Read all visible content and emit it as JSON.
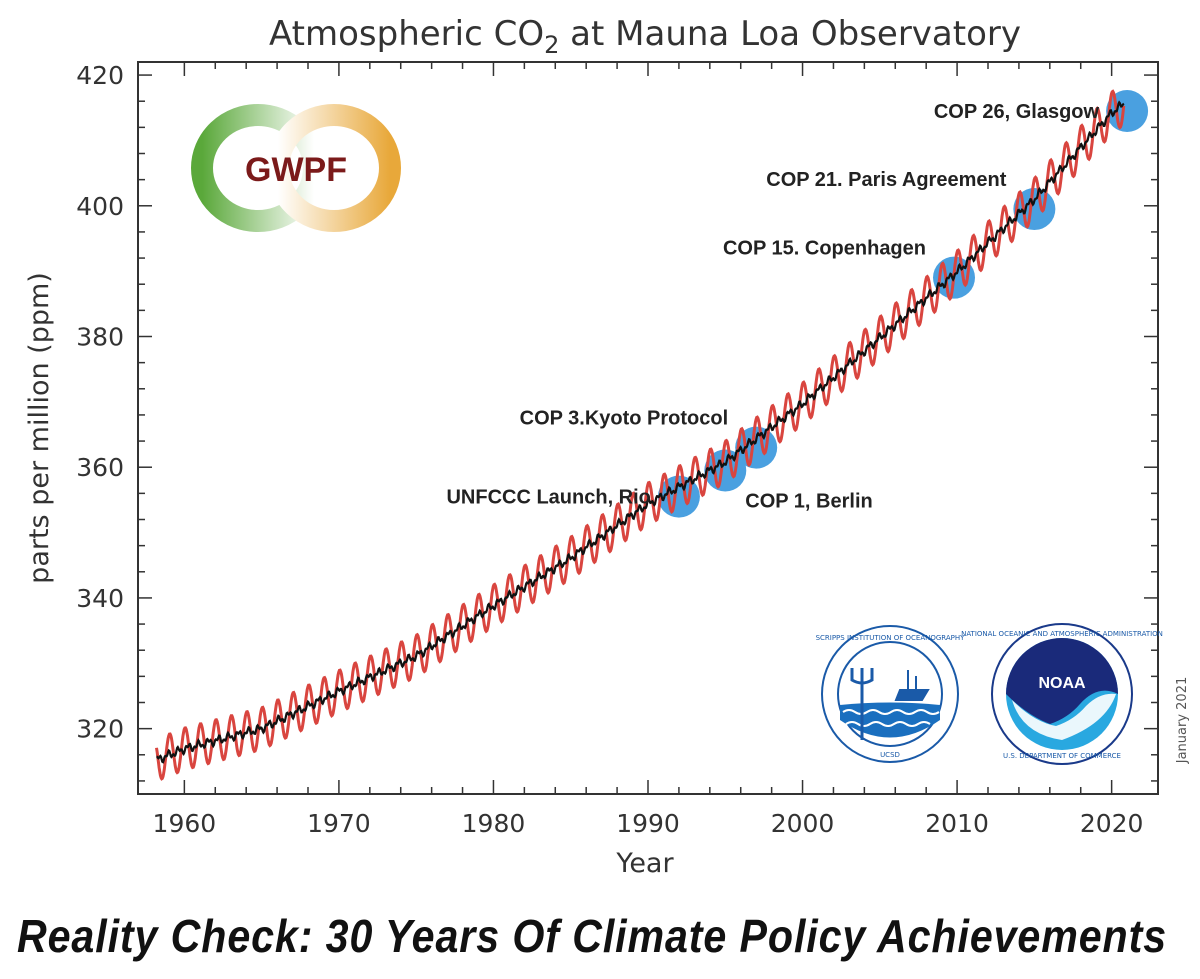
{
  "chart_data": {
    "type": "line",
    "title": "Atmospheric CO",
    "title_subscript": "2",
    "title_suffix": " at Mauna Loa Observatory",
    "xlabel": "Year",
    "ylabel": "parts per million (ppm)",
    "xlim": [
      1957,
      2023
    ],
    "ylim": [
      310,
      422
    ],
    "x_ticks": [
      1960,
      1970,
      1980,
      1990,
      2000,
      2010,
      2020
    ],
    "y_ticks": [
      320,
      340,
      360,
      380,
      400,
      420
    ],
    "grid": false,
    "series": [
      {
        "color": "#d9453f",
        "style": "monthly seasonal cycle",
        "x": [
          1958,
          1960,
          1965,
          1970,
          1975,
          1980,
          1985,
          1990,
          1995,
          2000,
          2005,
          2010,
          2015,
          2020,
          2021
        ],
        "y": [
          315.0,
          316.9,
          320.0,
          325.7,
          331.1,
          338.8,
          346.1,
          354.4,
          360.8,
          369.7,
          379.8,
          389.9,
          401.0,
          414.2,
          416.0
        ],
        "seasonal_amplitude": 3.2
      },
      {
        "color": "#111111",
        "style": "seasonally adjusted trend",
        "x": [
          1958,
          1960,
          1965,
          1970,
          1975,
          1980,
          1985,
          1990,
          1995,
          2000,
          2005,
          2010,
          2015,
          2020,
          2021
        ],
        "y": [
          315.0,
          316.9,
          320.0,
          325.7,
          331.1,
          338.8,
          346.1,
          354.4,
          360.8,
          369.7,
          379.8,
          389.9,
          401.0,
          414.2,
          416.0
        ]
      }
    ],
    "annotations": [
      {
        "label": "UNFCCC Launch, Rio",
        "x": 1992,
        "y": 355.5,
        "label_side": "left"
      },
      {
        "label": "COP 1, Berlin",
        "x": 1995,
        "y": 359.5,
        "label_side": "below-right"
      },
      {
        "label": "COP 3.Kyoto Protocol",
        "x": 1997,
        "y": 363.0,
        "label_side": "above-left"
      },
      {
        "label": "COP 15. Copenhagen",
        "x": 2009.8,
        "y": 389.0,
        "label_side": "above-left"
      },
      {
        "label": "COP 21. Paris Agreement",
        "x": 2015,
        "y": 399.5,
        "label_side": "above-left"
      },
      {
        "label": "COP 26, Glasgow",
        "x": 2021,
        "y": 414.5,
        "label_side": "left"
      }
    ],
    "marker_color": "#4aa0e0",
    "date_stamp": "January 2021"
  },
  "logos": {
    "gwpf": "GWPF",
    "scripps": "SCRIPPS INSTITUTION OF OCEANOGRAPHY",
    "scripps_sub": "UCSD",
    "noaa": "NOAA",
    "noaa_ring": "NATIONAL OCEANIC AND ATMOSPHERIC ADMINISTRATION",
    "noaa_dept": "U.S. DEPARTMENT OF COMMERCE"
  },
  "caption": "Reality Check: 30 Years Of Climate Policy Achievements"
}
